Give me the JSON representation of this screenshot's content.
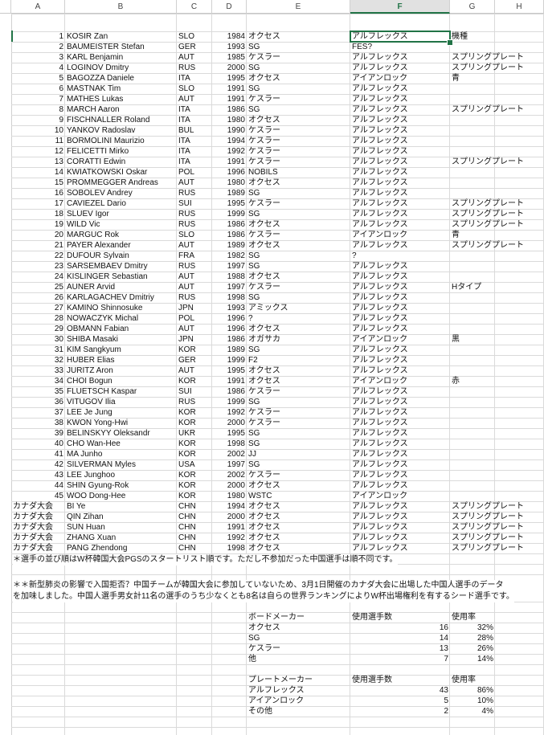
{
  "columns": [
    "A",
    "B",
    "C",
    "D",
    "E",
    "F",
    "G",
    "H"
  ],
  "selected_column": "F",
  "accent_color": "#217346",
  "rows": [
    [
      "1",
      "KOSIR Zan",
      "SLO",
      "1984",
      "オクセス",
      "アルフレックス",
      "機種"
    ],
    [
      "2",
      "BAUMEISTER Stefan",
      "GER",
      "1993",
      "SG",
      "FES?",
      ""
    ],
    [
      "3",
      "KARL Benjamin",
      "AUT",
      "1985",
      "ケスラー",
      "アルフレックス",
      "スプリングプレート"
    ],
    [
      "4",
      "LOGINOV Dmitry",
      "RUS",
      "2000",
      "SG",
      "アルフレックス",
      "スプリングプレート"
    ],
    [
      "5",
      "BAGOZZA Daniele",
      "ITA",
      "1995",
      "オクセス",
      "アイアンロック",
      "青"
    ],
    [
      "6",
      "MASTNAK Tim",
      "SLO",
      "1991",
      "SG",
      "アルフレックス",
      ""
    ],
    [
      "7",
      "MATHES Lukas",
      "AUT",
      "1991",
      "ケスラー",
      "アルフレックス",
      ""
    ],
    [
      "8",
      "MARCH Aaron",
      "ITA",
      "1986",
      "SG",
      "アルフレックス",
      "スプリングプレート"
    ],
    [
      "9",
      "FISCHNALLER Roland",
      "ITA",
      "1980",
      "オクセス",
      "アルフレックス",
      ""
    ],
    [
      "10",
      "YANKOV Radoslav",
      "BUL",
      "1990",
      "ケスラー",
      "アルフレックス",
      ""
    ],
    [
      "11",
      "BORMOLINI Maurizio",
      "ITA",
      "1994",
      "ケスラー",
      "アルフレックス",
      ""
    ],
    [
      "12",
      "FELICETTI Mirko",
      "ITA",
      "1992",
      "ケスラー",
      "アルフレックス",
      ""
    ],
    [
      "13",
      "CORATTI Edwin",
      "ITA",
      "1991",
      "ケスラー",
      "アルフレックス",
      "スプリングプレート"
    ],
    [
      "14",
      "KWIATKOWSKI Oskar",
      "POL",
      "1996",
      "NOBILS",
      "アルフレックス",
      ""
    ],
    [
      "15",
      "PROMMEGGER Andreas",
      "AUT",
      "1980",
      "オクセス",
      "アルフレックス",
      ""
    ],
    [
      "16",
      "SOBOLEV Andrey",
      "RUS",
      "1989",
      "SG",
      "アルフレックス",
      ""
    ],
    [
      "17",
      "CAVIEZEL Dario",
      "SUI",
      "1995",
      "ケスラー",
      "アルフレックス",
      "スプリングプレート"
    ],
    [
      "18",
      "SLUEV Igor",
      "RUS",
      "1999",
      "SG",
      "アルフレックス",
      "スプリングプレート"
    ],
    [
      "19",
      "WILD Vic",
      "RUS",
      "1986",
      "オクセス",
      "アルフレックス",
      "スプリングプレート"
    ],
    [
      "20",
      "MARGUC Rok",
      "SLO",
      "1986",
      "ケスラー",
      "アイアンロック",
      "青"
    ],
    [
      "21",
      "PAYER Alexander",
      "AUT",
      "1989",
      "オクセス",
      "アルフレックス",
      "スプリングプレート"
    ],
    [
      "22",
      "DUFOUR Sylvain",
      "FRA",
      "1982",
      "SG",
      "?",
      ""
    ],
    [
      "23",
      "SARSEMBAEV Dmitry",
      "RUS",
      "1997",
      "SG",
      "アルフレックス",
      ""
    ],
    [
      "24",
      "KISLINGER Sebastian",
      "AUT",
      "1988",
      "オクセス",
      "アルフレックス",
      ""
    ],
    [
      "25",
      "AUNER Arvid",
      "AUT",
      "1997",
      "ケスラー",
      "アルフレックス",
      "Hタイプ"
    ],
    [
      "26",
      "KARLAGACHEV Dmitriy",
      "RUS",
      "1998",
      "SG",
      "アルフレックス",
      ""
    ],
    [
      "27",
      "KAMINO Shinnosuke",
      "JPN",
      "1993",
      "アミックス",
      "アルフレックス",
      ""
    ],
    [
      "28",
      "NOWACZYK Michal",
      "POL",
      "1996",
      "?",
      "アルフレックス",
      ""
    ],
    [
      "29",
      "OBMANN Fabian",
      "AUT",
      "1996",
      "オクセス",
      "アルフレックス",
      ""
    ],
    [
      "30",
      "SHIBA Masaki",
      "JPN",
      "1986",
      "オガサカ",
      "アイアンロック",
      "黒"
    ],
    [
      "31",
      "KIM Sangkyum",
      "KOR",
      "1989",
      "SG",
      "アルフレックス",
      ""
    ],
    [
      "32",
      "HUBER Elias",
      "GER",
      "1999",
      "F2",
      "アルフレックス",
      ""
    ],
    [
      "33",
      "JURITZ Aron",
      "AUT",
      "1995",
      "オクセス",
      "アルフレックス",
      ""
    ],
    [
      "34",
      "CHOI Bogun",
      "KOR",
      "1991",
      "オクセス",
      "アイアンロック",
      "赤"
    ],
    [
      "35",
      "FLUETSCH Kaspar",
      "SUI",
      "1986",
      "ケスラー",
      "アルフレックス",
      ""
    ],
    [
      "36",
      "VITUGOV Ilia",
      "RUS",
      "1999",
      "SG",
      "アルフレックス",
      ""
    ],
    [
      "37",
      "LEE Je Jung",
      "KOR",
      "1992",
      "ケスラー",
      "アルフレックス",
      ""
    ],
    [
      "38",
      "KWON Yong-Hwi",
      "KOR",
      "2000",
      "ケスラー",
      "アルフレックス",
      ""
    ],
    [
      "39",
      "BELINSKYY Oleksandr",
      "UKR",
      "1995",
      "SG",
      "アルフレックス",
      ""
    ],
    [
      "40",
      "CHO Wan-Hee",
      "KOR",
      "1998",
      "SG",
      "アルフレックス",
      ""
    ],
    [
      "41",
      "MA Junho",
      "KOR",
      "2002",
      "JJ",
      "アルフレックス",
      ""
    ],
    [
      "42",
      "SILVERMAN Myles",
      "USA",
      "1997",
      "SG",
      "アルフレックス",
      ""
    ],
    [
      "43",
      "LEE Junghoo",
      "KOR",
      "2002",
      "ケスラー",
      "アルフレックス",
      ""
    ],
    [
      "44",
      "SHIN Gyung-Rok",
      "KOR",
      "2000",
      "オクセス",
      "アルフレックス",
      ""
    ],
    [
      "45",
      "WOO Dong-Hee",
      "KOR",
      "1980",
      "WSTC",
      "アイアンロック",
      ""
    ],
    [
      "カナダ大会",
      "BI Ye",
      "CHN",
      "1994",
      "オクセス",
      "アルフレックス",
      "スプリングプレート"
    ],
    [
      "カナダ大会",
      "QIN Zihan",
      "CHN",
      "2000",
      "オクセス",
      "アルフレックス",
      "スプリングプレート"
    ],
    [
      "カナダ大会",
      "SUN Huan",
      "CHN",
      "1991",
      "オクセス",
      "アルフレックス",
      "スプリングプレート"
    ],
    [
      "カナダ大会",
      "ZHANG Xuan",
      "CHN",
      "1992",
      "オクセス",
      "アルフレックス",
      "スプリングプレート"
    ],
    [
      "カナダ大会",
      "PANG Zhendong",
      "CHN",
      "1998",
      "オクセス",
      "アルフレックス",
      "スプリングプレート"
    ]
  ],
  "notes": {
    "note1": "＊選手の並び順はW杯韓国大会PGSのスタートリスト順です。ただし不参加だった中国選手は順不同です。",
    "note2_line1": "＊＊新型肺炎の影響で入国拒否？中国チームが韓国大会に参加していないため、3月1日開催のカナダ大会に出場した中国人選手のデータ",
    "note2_line2": "を加味しました。中国人選手男女計11名の選手のうち少なくとも8名は自らの世界ランキングによりW杯出場権利を有するシード選手です。"
  },
  "board_summary": {
    "header": [
      "ボードメーカー",
      "使用選手数",
      "使用率"
    ],
    "rows": [
      [
        "オクセス",
        "16",
        "32%"
      ],
      [
        "SG",
        "14",
        "28%"
      ],
      [
        "ケスラー",
        "13",
        "26%"
      ],
      [
        "他",
        "7",
        "14%"
      ]
    ]
  },
  "plate_summary": {
    "header": [
      "プレートメーカー",
      "使用選手数",
      "使用率"
    ],
    "rows": [
      [
        "アルフレックス",
        "43",
        "86%"
      ],
      [
        "アイアンロック",
        "5",
        "10%"
      ],
      [
        "その他",
        "2",
        "4%"
      ]
    ]
  }
}
